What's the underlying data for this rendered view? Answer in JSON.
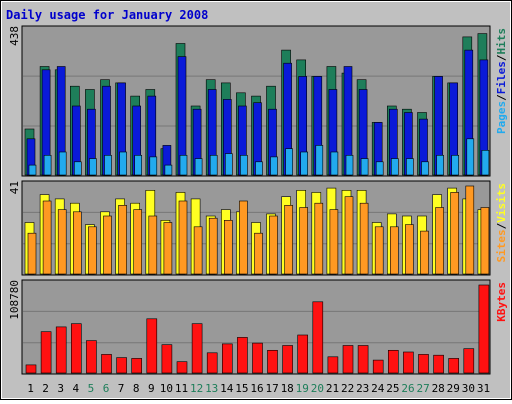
{
  "chart_data": [
    {
      "type": "bar",
      "panel": "hits-files-pages",
      "title": "Daily usage for January 2008",
      "ymax_label": "438",
      "ylim": [
        0,
        438
      ],
      "categories": [
        "1",
        "2",
        "3",
        "4",
        "5",
        "6",
        "7",
        "8",
        "9",
        "10",
        "11",
        "12",
        "13",
        "14",
        "15",
        "16",
        "17",
        "18",
        "19",
        "20",
        "21",
        "22",
        "23",
        "24",
        "25",
        "26",
        "27",
        "28",
        "29",
        "30",
        "31"
      ],
      "weekend_days": [
        "5",
        "6",
        "12",
        "13",
        "19",
        "20",
        "26",
        "27"
      ],
      "series": [
        {
          "name": "Hits",
          "color": "#1e7e5a",
          "values": [
            140,
            330,
            320,
            270,
            260,
            290,
            280,
            240,
            260,
            80,
            400,
            210,
            290,
            280,
            250,
            240,
            270,
            380,
            350,
            300,
            330,
            310,
            290,
            160,
            210,
            200,
            190,
            300,
            280,
            420,
            430
          ]
        },
        {
          "name": "Files",
          "color": "#0a1ad8",
          "values": [
            110,
            320,
            330,
            210,
            200,
            270,
            280,
            210,
            240,
            90,
            360,
            200,
            260,
            230,
            210,
            220,
            200,
            340,
            300,
            300,
            260,
            330,
            260,
            160,
            200,
            190,
            170,
            300,
            280,
            380,
            350
          ]
        },
        {
          "name": "Pages",
          "color": "#22aaee",
          "values": [
            30,
            60,
            70,
            40,
            50,
            60,
            70,
            60,
            55,
            30,
            60,
            50,
            60,
            65,
            60,
            40,
            55,
            80,
            70,
            90,
            70,
            60,
            50,
            40,
            50,
            50,
            40,
            60,
            60,
            110,
            75
          ]
        }
      ],
      "legend": [
        "Pages",
        "Files",
        "Hits"
      ],
      "legend_sep": "/"
    },
    {
      "type": "bar",
      "panel": "visits-sites",
      "ymax_label": "41",
      "ylim": [
        0,
        41
      ],
      "series": [
        {
          "name": "Visits",
          "color": "#ffff22",
          "values": [
            24,
            37,
            35,
            33,
            23,
            29,
            35,
            33,
            39,
            25,
            38,
            35,
            27,
            30,
            29,
            24,
            28,
            36,
            39,
            38,
            40,
            39,
            39,
            24,
            28,
            27,
            27,
            37,
            40,
            35,
            30
          ]
        },
        {
          "name": "Sites",
          "color": "#ff9922",
          "values": [
            19,
            34,
            30,
            29,
            22,
            27,
            32,
            30,
            27,
            24,
            34,
            22,
            26,
            25,
            34,
            19,
            27,
            32,
            31,
            33,
            30,
            36,
            33,
            22,
            22,
            23,
            20,
            31,
            38,
            41,
            31
          ]
        }
      ],
      "legend": [
        "Sites",
        "Visits"
      ],
      "legend_sep": "/"
    },
    {
      "type": "bar",
      "panel": "kbytes",
      "ymax_label": "108780",
      "ylim": [
        0,
        108780
      ],
      "series": [
        {
          "name": "KBytes",
          "color": "#ff1111",
          "values": [
            10000,
            51000,
            57000,
            61000,
            40000,
            23000,
            19000,
            18000,
            67000,
            35000,
            14000,
            61000,
            25000,
            36000,
            44000,
            37000,
            28000,
            34000,
            47000,
            88000,
            20000,
            34000,
            34000,
            16000,
            28000,
            26000,
            23000,
            22000,
            18000,
            30000,
            108780
          ]
        }
      ],
      "legend": [
        "KBytes"
      ]
    }
  ]
}
